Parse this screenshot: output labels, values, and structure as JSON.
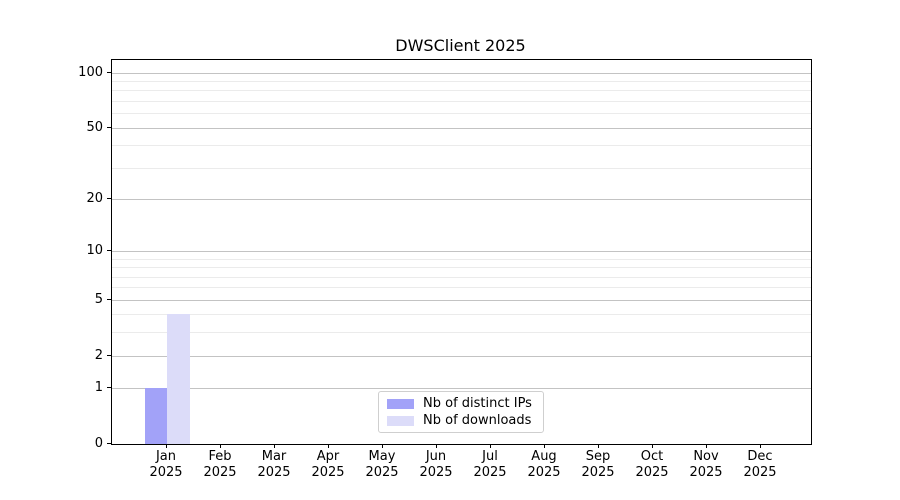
{
  "title": "DWSClient 2025",
  "chart_data": {
    "type": "bar",
    "title": "DWSClient 2025",
    "categories": [
      "Jan",
      "Feb",
      "Mar",
      "Apr",
      "May",
      "Jun",
      "Jul",
      "Aug",
      "Sep",
      "Oct",
      "Nov",
      "Dec"
    ],
    "x_tick_second_line": "2025",
    "series": [
      {
        "name": "Nb of distinct IPs",
        "color": "#a2a2f8",
        "values": [
          1,
          0,
          0,
          0,
          0,
          0,
          0,
          0,
          0,
          0,
          0,
          0
        ]
      },
      {
        "name": "Nb of downloads",
        "color": "#dcdcf9",
        "values": [
          4,
          0,
          0,
          0,
          0,
          0,
          0,
          0,
          0,
          0,
          0,
          0
        ]
      }
    ],
    "y_axis": {
      "scale": "log10(1+x)",
      "major_ticks": [
        0,
        1,
        2,
        5,
        10,
        20,
        50,
        100
      ],
      "major_tick_labels": [
        "0",
        "1",
        "2",
        "5",
        "10",
        "20",
        "50",
        "100"
      ],
      "minor_ticks": [
        3,
        4,
        6,
        7,
        8,
        9,
        30,
        40,
        60,
        70,
        80,
        90
      ],
      "ylim": [
        0,
        117
      ]
    },
    "xlabel": "",
    "ylabel": "",
    "grid": true,
    "legend_position": "lower center"
  },
  "colors": {
    "background": "#ffffff",
    "axis": "#000000",
    "major_grid": "#c3c3c3",
    "minor_grid": "#ebebeb",
    "bar_distinct_ips": "#a2a2f8",
    "bar_downloads": "#dcdcf9"
  }
}
